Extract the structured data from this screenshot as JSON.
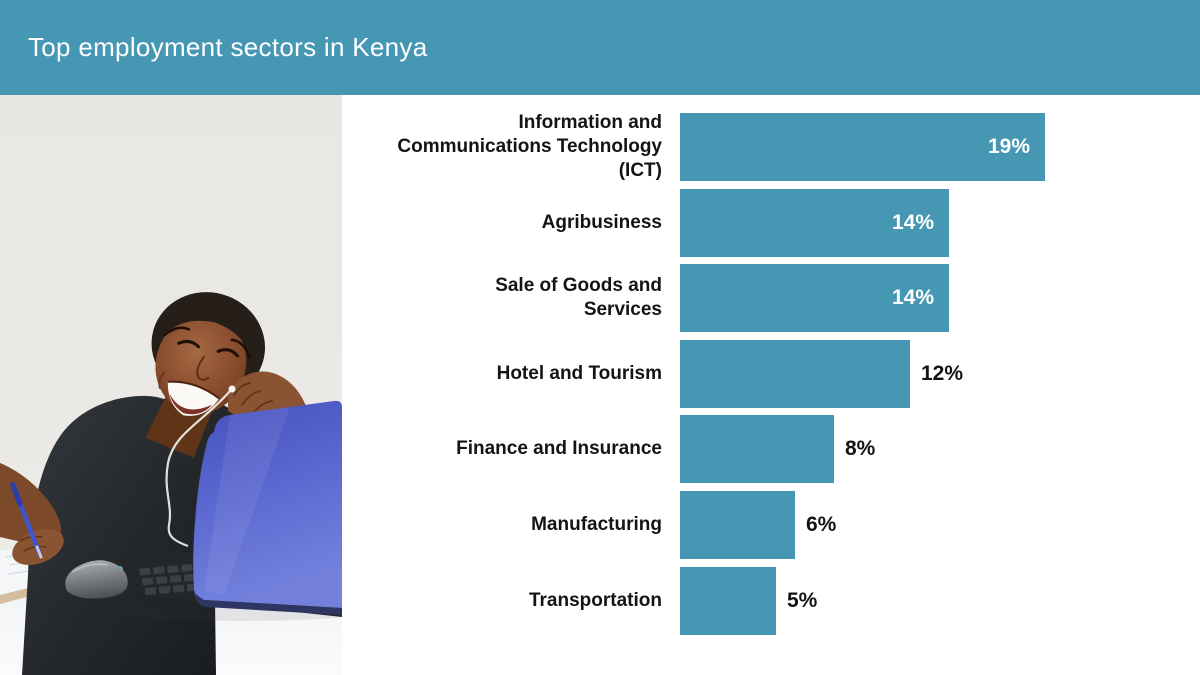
{
  "header": {
    "title": "Top employment sectors in Kenya",
    "background_color": "#4697B4",
    "text_color": "#FFFFFF"
  },
  "photo": {
    "alt": "Smiling young woman with white earphones resting her chin on her hand at a white desk with a blue laptop, a gray mouse, a notepad and a blue pen"
  },
  "colors": {
    "accent_teal": "#4697B4",
    "bar_fill": "#4697B4",
    "category_label_text": "#141414",
    "value_label_inside": "#FFFFFF",
    "value_label_outside": "#131313",
    "laptop_blue": "#5B68D0",
    "background": "#FFFFFF"
  },
  "chart_data": {
    "type": "bar",
    "orientation": "horizontal",
    "title": "Top employment sectors in Kenya",
    "categories": [
      "Information and Communications Technology (ICT)",
      "Agribusiness",
      "Sale of Goods and Services",
      "Hotel and Tourism",
      "Finance and Insurance",
      "Manufacturing",
      "Transportation"
    ],
    "category_lines": [
      [
        "Information and",
        "Communications Technology",
        "(ICT)"
      ],
      [
        "Agribusiness"
      ],
      [
        "Sale of Goods and",
        "Services"
      ],
      [
        "Hotel and Tourism"
      ],
      [
        "Finance and Insurance"
      ],
      [
        "Manufacturing"
      ],
      [
        "Transportation"
      ]
    ],
    "values": [
      19,
      14,
      14,
      12,
      8,
      6,
      5
    ],
    "unit": "%",
    "value_labels": [
      "19%",
      "14%",
      "14%",
      "12%",
      "8%",
      "6%",
      "5%"
    ],
    "value_label_placement": [
      "inside",
      "inside",
      "inside",
      "outside",
      "outside",
      "outside",
      "outside"
    ],
    "bar_color": "#4697B4",
    "xlim": [
      0,
      20
    ],
    "grid": false,
    "legend": false,
    "xlabel": "",
    "ylabel": ""
  }
}
